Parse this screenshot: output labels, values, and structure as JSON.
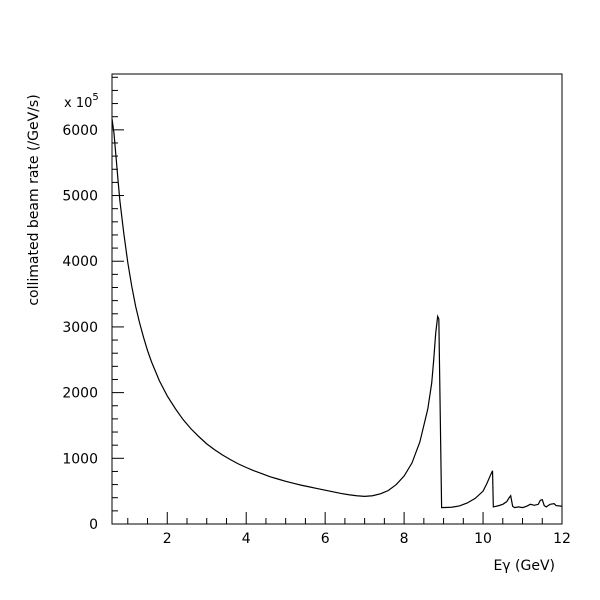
{
  "chart_data": {
    "type": "line",
    "title": "",
    "xlabel": "Eγ (GeV)",
    "ylabel": "collimated beam rate (/GeV/s)",
    "y_multiplier": {
      "base": "x 10",
      "exponent": "5"
    },
    "xlim": [
      0.6,
      12
    ],
    "ylim": [
      0,
      6850
    ],
    "x_major_ticks": [
      2,
      4,
      6,
      8,
      10,
      12
    ],
    "x_tick_labels": [
      "2",
      "4",
      "6",
      "8",
      "10",
      "12"
    ],
    "y_major_ticks": [
      0,
      1000,
      2000,
      3000,
      4000,
      5000,
      6000
    ],
    "y_tick_labels": [
      "0",
      "1000",
      "2000",
      "3000",
      "4000",
      "5000",
      "6000"
    ],
    "grid": false,
    "line_color": "#000000",
    "series": [
      {
        "points": [
          [
            0.6,
            6170
          ],
          [
            0.65,
            5950
          ],
          [
            0.7,
            5600
          ],
          [
            0.75,
            5250
          ],
          [
            0.8,
            4920
          ],
          [
            0.9,
            4420
          ],
          [
            1.0,
            3980
          ],
          [
            1.1,
            3620
          ],
          [
            1.2,
            3310
          ],
          [
            1.3,
            3060
          ],
          [
            1.4,
            2840
          ],
          [
            1.5,
            2640
          ],
          [
            1.6,
            2470
          ],
          [
            1.8,
            2180
          ],
          [
            2.0,
            1950
          ],
          [
            2.2,
            1760
          ],
          [
            2.4,
            1590
          ],
          [
            2.6,
            1450
          ],
          [
            2.8,
            1330
          ],
          [
            3.0,
            1220
          ],
          [
            3.2,
            1130
          ],
          [
            3.4,
            1050
          ],
          [
            3.6,
            980
          ],
          [
            3.8,
            915
          ],
          [
            4.0,
            860
          ],
          [
            4.2,
            810
          ],
          [
            4.4,
            765
          ],
          [
            4.6,
            720
          ],
          [
            4.8,
            685
          ],
          [
            5.0,
            650
          ],
          [
            5.2,
            620
          ],
          [
            5.4,
            590
          ],
          [
            5.6,
            565
          ],
          [
            5.8,
            540
          ],
          [
            6.0,
            515
          ],
          [
            6.2,
            490
          ],
          [
            6.4,
            465
          ],
          [
            6.6,
            445
          ],
          [
            6.8,
            430
          ],
          [
            7.0,
            420
          ],
          [
            7.2,
            430
          ],
          [
            7.4,
            460
          ],
          [
            7.6,
            510
          ],
          [
            7.8,
            600
          ],
          [
            8.0,
            730
          ],
          [
            8.2,
            930
          ],
          [
            8.4,
            1250
          ],
          [
            8.6,
            1750
          ],
          [
            8.7,
            2150
          ],
          [
            8.75,
            2500
          ],
          [
            8.8,
            2900
          ],
          [
            8.85,
            3160
          ],
          [
            8.88,
            3120
          ],
          [
            8.95,
            250
          ],
          [
            9.2,
            255
          ],
          [
            9.4,
            275
          ],
          [
            9.6,
            320
          ],
          [
            9.8,
            390
          ],
          [
            10.0,
            500
          ],
          [
            10.1,
            620
          ],
          [
            10.2,
            760
          ],
          [
            10.24,
            810
          ],
          [
            10.26,
            260
          ],
          [
            10.4,
            280
          ],
          [
            10.5,
            300
          ],
          [
            10.6,
            340
          ],
          [
            10.65,
            390
          ],
          [
            10.7,
            430
          ],
          [
            10.75,
            270
          ],
          [
            10.8,
            250
          ],
          [
            10.9,
            260
          ],
          [
            11.0,
            250
          ],
          [
            11.1,
            270
          ],
          [
            11.2,
            300
          ],
          [
            11.3,
            285
          ],
          [
            11.4,
            300
          ],
          [
            11.45,
            360
          ],
          [
            11.5,
            370
          ],
          [
            11.55,
            280
          ],
          [
            11.6,
            260
          ],
          [
            11.7,
            300
          ],
          [
            11.8,
            310
          ],
          [
            11.85,
            280
          ],
          [
            12.0,
            270
          ]
        ]
      }
    ]
  }
}
